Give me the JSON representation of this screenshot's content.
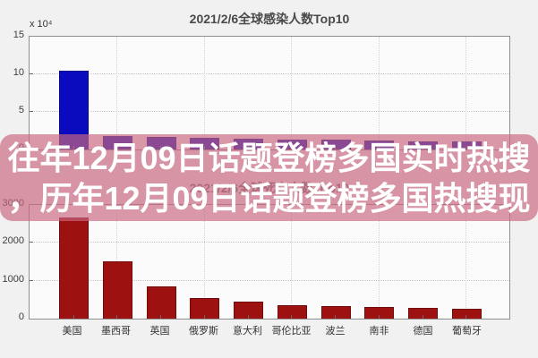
{
  "page": {
    "background": "#f2f1f2",
    "banner_color": "rgba(200,103,128,0.68)",
    "headline_color": "#ffffff"
  },
  "overlay": {
    "line1": "往年12月09日话题登榜多国实时热搜",
    "line2": "，历年12月09日话题登榜多国热搜现"
  },
  "chart_data": [
    {
      "type": "bar",
      "title": "2021/2/6全球感染人数Top10",
      "y_exp_label": "x 10⁴",
      "ylim": [
        0,
        15
      ],
      "yticks": [
        0,
        5,
        10,
        15
      ],
      "values": [
        10.3,
        1.7,
        1.55,
        1.4,
        1.3,
        1.25,
        1.15,
        1.1,
        1.0,
        0.9
      ],
      "bar_color": "#0a0abe",
      "grid": true,
      "note": "x-axis category labels hidden behind overlay banner"
    },
    {
      "type": "bar",
      "title": "2021/2/6全球死亡人数Top10",
      "title_rendering": "faint, partially hidden behind overlay banner",
      "ylim": [
        0,
        3000
      ],
      "yticks": [
        0,
        1000,
        2000,
        3000
      ],
      "categories": [
        "美国",
        "墨西哥",
        "英国",
        "俄罗斯",
        "意大利",
        "哥伦比亚",
        "波兰",
        "南非",
        "德国",
        "葡萄牙"
      ],
      "values": [
        2650,
        1500,
        830,
        520,
        420,
        330,
        300,
        295,
        260,
        230
      ],
      "bar_color": "#9e1111",
      "grid": true
    }
  ]
}
